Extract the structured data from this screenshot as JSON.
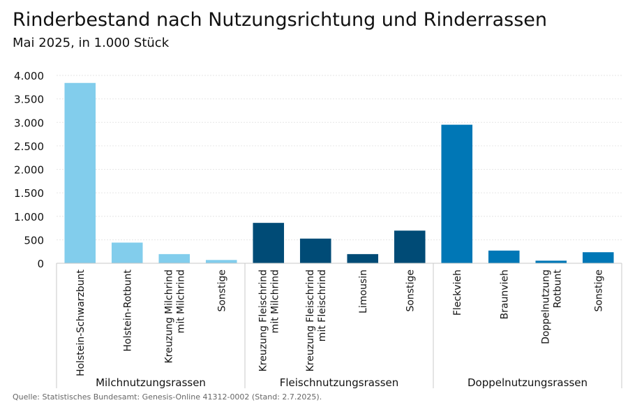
{
  "chart_data": {
    "type": "bar",
    "title": "Rinderbestand nach Nutzungsrichtung und Rinderrassen",
    "subtitle": "Mai 2025, in 1.000 Stück",
    "xlabel": "",
    "ylabel": "",
    "ylim": [
      0,
      4000
    ],
    "yticks": [
      0,
      500,
      1000,
      1500,
      2000,
      2500,
      3000,
      3500,
      4000
    ],
    "ytick_labels": [
      "0",
      "500",
      "1.000",
      "1.500",
      "2.000",
      "2.500",
      "3.000",
      "3.500",
      "4.000"
    ],
    "grid": true,
    "groups": [
      {
        "name": "Milchnutzungsrassen",
        "color": "#82cdec",
        "categories": [
          [
            "Holstein-Schwarzbunt"
          ],
          [
            "Holstein-Rotbunt"
          ],
          [
            "Kreuzung Milchrind",
            "mit Milchrind"
          ],
          [
            "Sonstige"
          ]
        ],
        "values": [
          3840,
          440,
          195,
          70
        ]
      },
      {
        "name": "Fleischnutzungsrassen",
        "color": "#004b76",
        "categories": [
          [
            "Kreuzung Fleischrind",
            "mit Milchrind"
          ],
          [
            "Kreuzung Fleischrind",
            "mit Fleischrind"
          ],
          [
            "Limousin"
          ],
          [
            "Sonstige"
          ]
        ],
        "values": [
          860,
          525,
          195,
          695
        ]
      },
      {
        "name": "Doppelnutzungsrassen",
        "color": "#0077b6",
        "categories": [
          [
            "Fleckvieh"
          ],
          [
            "Braunvieh"
          ],
          [
            "Doppelnutzung",
            "Rotbunt"
          ],
          [
            "Sonstige"
          ]
        ],
        "values": [
          2950,
          270,
          55,
          235
        ]
      }
    ]
  },
  "source": "Quelle: Statistisches Bundesamt: Genesis-Online 41312-0002 (Stand: 2.7.2025).",
  "colors": {
    "grid": "#e6e6e6",
    "axis": "#c8c8c8",
    "text": "#111111"
  }
}
